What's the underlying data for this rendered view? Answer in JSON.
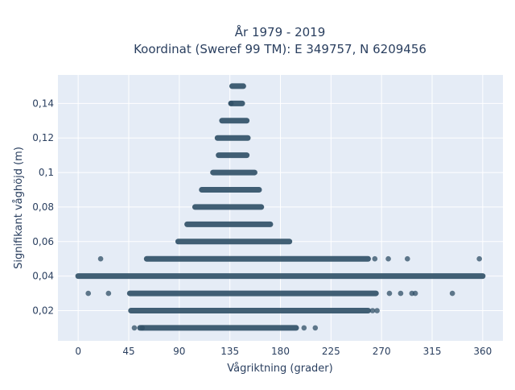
{
  "chart_data": {
    "type": "scatter",
    "title_line1": "År 1979 - 2019",
    "title_line2": "Koordinat (Sweref 99 TM): E 349757, N 6209456",
    "xlabel": "Vågriktning (grader)",
    "ylabel": "Signifikant våghöjd (m)",
    "xlim": [
      -18,
      378
    ],
    "ylim": [
      0.0025,
      0.1565
    ],
    "xticks": [
      {
        "value": 0,
        "label": "0"
      },
      {
        "value": 45,
        "label": "45"
      },
      {
        "value": 90,
        "label": "90"
      },
      {
        "value": 135,
        "label": "135"
      },
      {
        "value": 180,
        "label": "180"
      },
      {
        "value": 225,
        "label": "225"
      },
      {
        "value": 270,
        "label": "270"
      },
      {
        "value": 315,
        "label": "315"
      },
      {
        "value": 360,
        "label": "360"
      }
    ],
    "yticks": [
      {
        "value": 0.02,
        "label": "0,02"
      },
      {
        "value": 0.04,
        "label": "0,04"
      },
      {
        "value": 0.06,
        "label": "0,06"
      },
      {
        "value": 0.08,
        "label": "0,08"
      },
      {
        "value": 0.1,
        "label": "0,1"
      },
      {
        "value": 0.12,
        "label": "0,12"
      },
      {
        "value": 0.14,
        "label": "0,14"
      }
    ],
    "grid": true,
    "marker_color": "#2f4f66",
    "dense_ranges": [
      {
        "y": 0.15,
        "x_start": 137,
        "x_end": 147
      },
      {
        "y": 0.14,
        "x_start": 136,
        "x_end": 146
      },
      {
        "y": 0.13,
        "x_start": 128,
        "x_end": 150
      },
      {
        "y": 0.12,
        "x_start": 124,
        "x_end": 151
      },
      {
        "y": 0.11,
        "x_start": 125,
        "x_end": 150
      },
      {
        "y": 0.1,
        "x_start": 120,
        "x_end": 157
      },
      {
        "y": 0.09,
        "x_start": 110,
        "x_end": 161
      },
      {
        "y": 0.08,
        "x_start": 104,
        "x_end": 163
      },
      {
        "y": 0.07,
        "x_start": 97,
        "x_end": 171
      },
      {
        "y": 0.06,
        "x_start": 89,
        "x_end": 188
      },
      {
        "y": 0.05,
        "x_start": 61,
        "x_end": 258
      },
      {
        "y": 0.04,
        "x_start": 0,
        "x_end": 360
      },
      {
        "y": 0.03,
        "x_start": 46,
        "x_end": 265
      },
      {
        "y": 0.02,
        "x_start": 47,
        "x_end": 258
      },
      {
        "y": 0.01,
        "x_start": 55,
        "x_end": 194
      }
    ],
    "scattered_points": [
      {
        "x": 136,
        "y": 0.14
      },
      {
        "x": 20,
        "y": 0.05
      },
      {
        "x": 264,
        "y": 0.05
      },
      {
        "x": 276,
        "y": 0.05
      },
      {
        "x": 293,
        "y": 0.05
      },
      {
        "x": 357,
        "y": 0.05
      },
      {
        "x": 9,
        "y": 0.03
      },
      {
        "x": 27,
        "y": 0.03
      },
      {
        "x": 277,
        "y": 0.03
      },
      {
        "x": 287,
        "y": 0.03
      },
      {
        "x": 297,
        "y": 0.03
      },
      {
        "x": 300,
        "y": 0.03
      },
      {
        "x": 333,
        "y": 0.03
      },
      {
        "x": 262,
        "y": 0.02
      },
      {
        "x": 266,
        "y": 0.02
      },
      {
        "x": 50,
        "y": 0.01
      },
      {
        "x": 57,
        "y": 0.01
      },
      {
        "x": 201,
        "y": 0.01
      },
      {
        "x": 211,
        "y": 0.01
      }
    ]
  }
}
